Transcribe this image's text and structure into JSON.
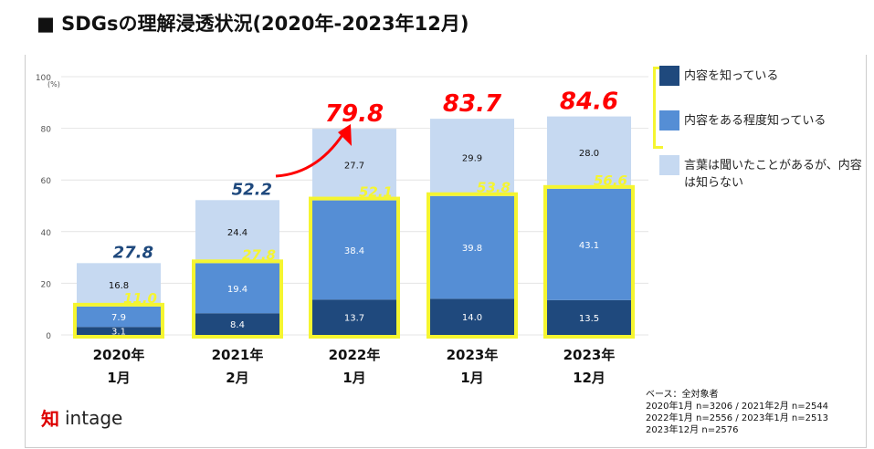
{
  "title": "■ SDGsの理解浸透状況(2020年-2023年12月)",
  "chart_data": {
    "type": "bar",
    "stacked": true,
    "categories": [
      "2020年\n1月",
      "2021年\n2月",
      "2022年\n1月",
      "2023年\n1月",
      "2023年\n12月"
    ],
    "ylim": [
      0,
      100
    ],
    "yticks": [
      0,
      20,
      40,
      60,
      80,
      100
    ],
    "yunit": "(%)",
    "grid": true,
    "legend": "right",
    "series": [
      {
        "name": "内容を知っている",
        "color": "#1f497d",
        "values": [
          3.1,
          8.4,
          13.7,
          14.0,
          13.5
        ]
      },
      {
        "name": "内容をある程度知っている",
        "color": "#558ed5",
        "values": [
          7.9,
          19.4,
          38.4,
          39.8,
          43.1
        ]
      },
      {
        "name": "言葉は聞いたことがあるが、内容は知らない",
        "color": "#c6d9f1",
        "values": [
          16.8,
          24.4,
          27.7,
          29.9,
          28.0
        ]
      }
    ],
    "known_subtotals": [
      "11.0",
      "27.8",
      "52.1",
      "53.8",
      "56.6"
    ],
    "totals": [
      "27.8",
      "52.2",
      "79.8",
      "83.7",
      "84.6"
    ],
    "total_colors": [
      "#1f497d",
      "#1f497d",
      "#ff0000",
      "#ff0000",
      "#ff0000"
    ],
    "highlight_color": "#f5f530"
  },
  "legend": [
    "内容を知っている",
    "内容をある程度知っている",
    "言葉は聞いたことがあるが、内容は知らない"
  ],
  "note": [
    "ベース：全対象者",
    "2020年1月 n=3206  / 2021年2月 n=2544",
    "2022年1月 n=2556  / 2023年1月 n=2513",
    "2023年12月 n=2576"
  ],
  "logo": "intage"
}
